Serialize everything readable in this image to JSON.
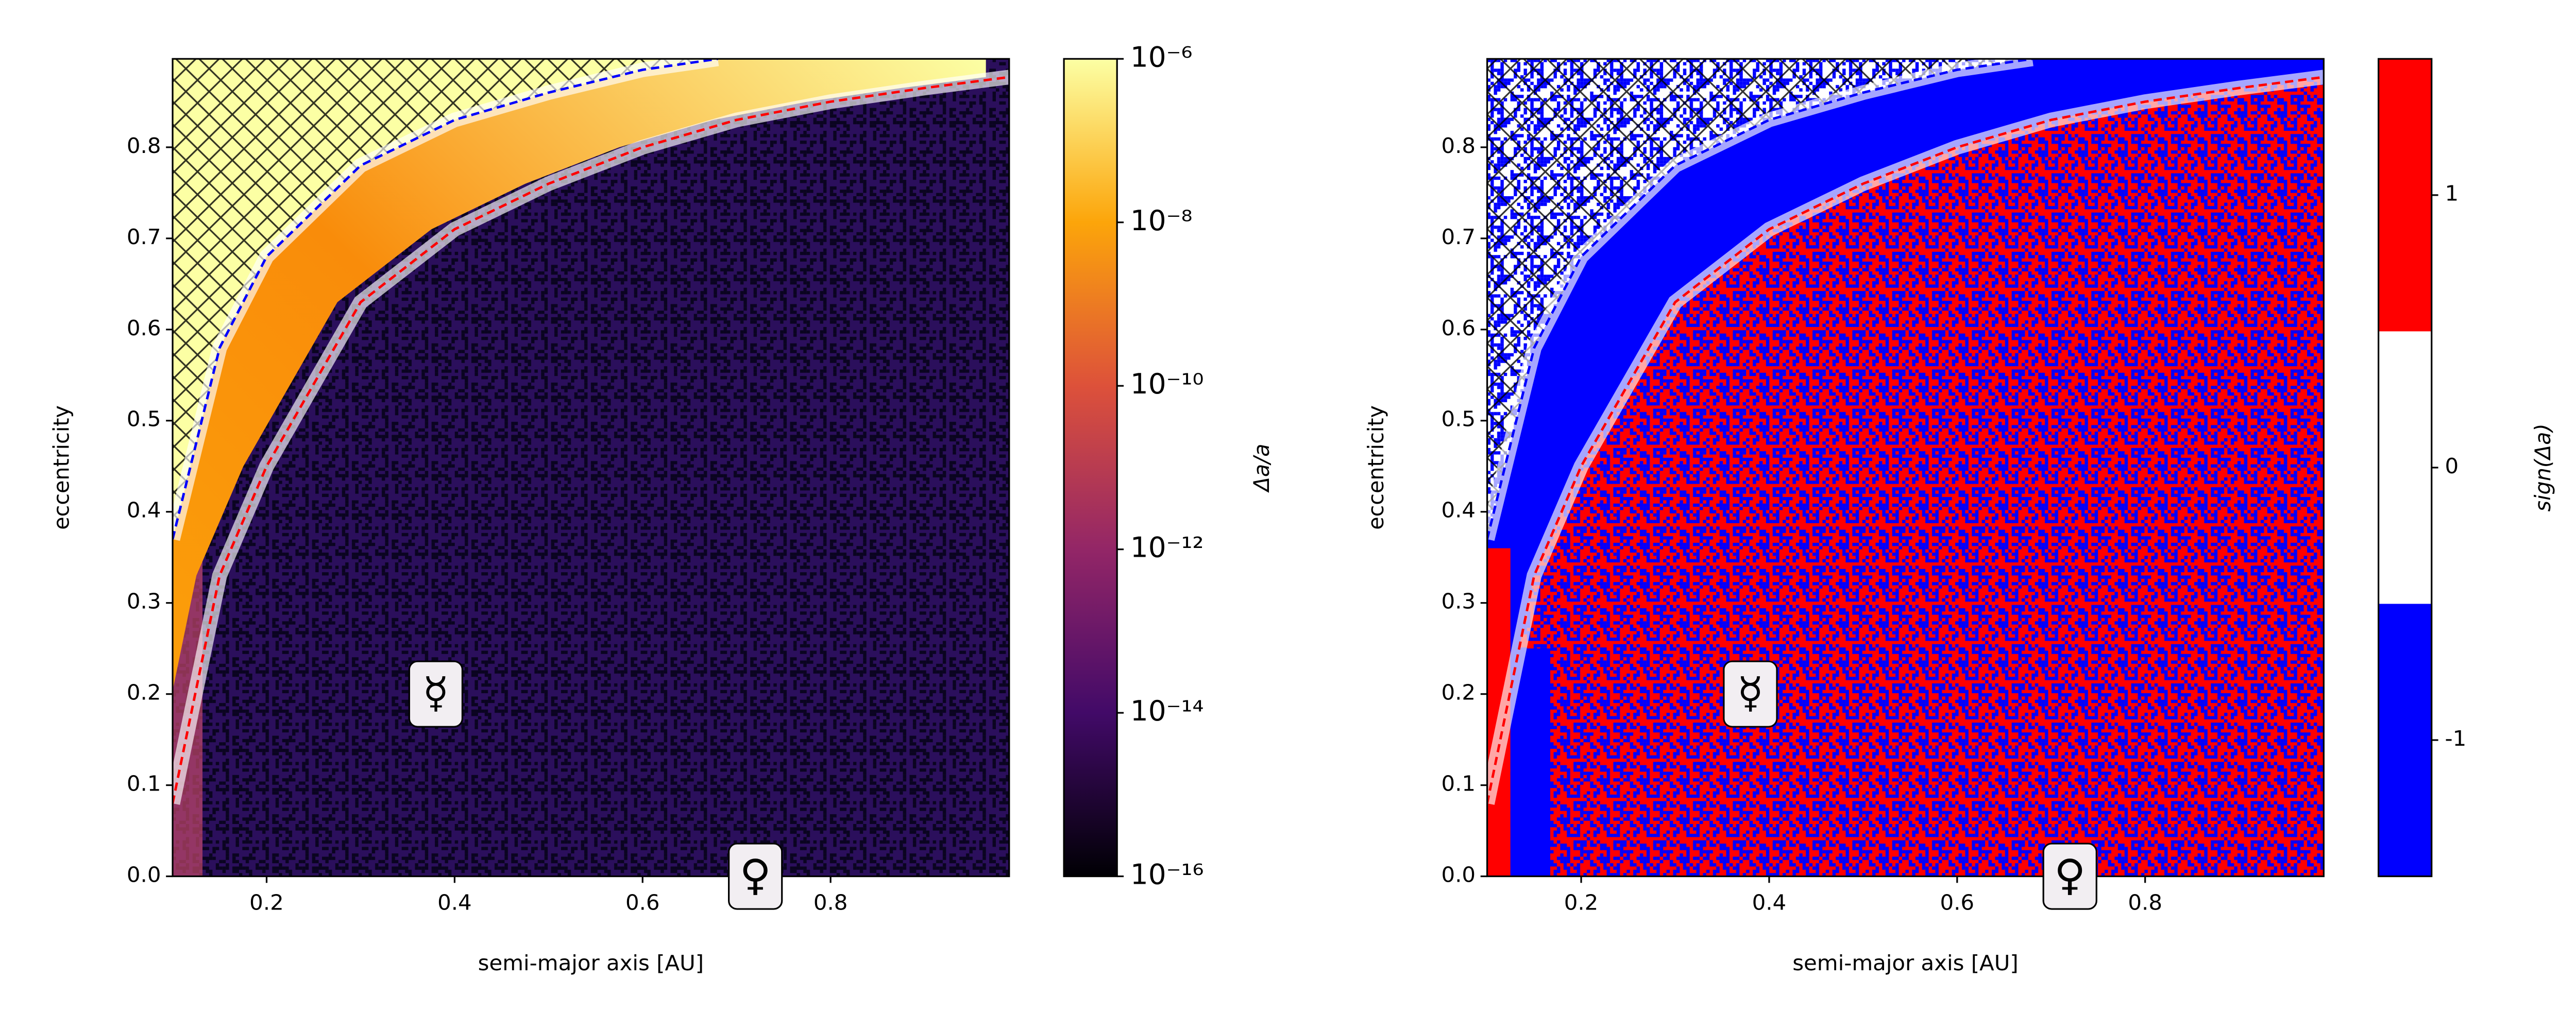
{
  "chart_data": [
    {
      "type": "heatmap",
      "xlabel": "semi-major axis [AU]",
      "ylabel": "eccentricity",
      "xlim": [
        0.1,
        0.99
      ],
      "ylim": [
        0,
        0.897
      ],
      "xticks": [
        0.2,
        0.4,
        0.6,
        0.8
      ],
      "yticks": [
        {
          "value": 0,
          "label": "0.0"
        },
        0.1,
        0.2,
        0.3,
        0.4,
        0.5,
        0.6,
        0.7,
        0.8
      ],
      "colorbar": {
        "label": "Δa/a",
        "scale": "log",
        "lim": [
          1e-16,
          1e-06
        ],
        "ticks": [
          {
            "value": 1e-16,
            "label": "10⁻¹⁶"
          },
          {
            "value": 1e-14,
            "label": "10⁻¹⁴"
          },
          {
            "value": 1e-12,
            "label": "10⁻¹²"
          },
          {
            "value": 1e-10,
            "label": "10⁻¹⁰"
          },
          {
            "value": 1e-08,
            "label": "10⁻⁸"
          },
          {
            "value": 1e-06,
            "label": "10⁻⁶"
          }
        ],
        "colors": [
          "#000004",
          "#420a68",
          "#932667",
          "#dd513a",
          "#fca50a",
          "#fcffa4"
        ]
      },
      "curves": [
        {
          "color": "#ff0000",
          "x": [
            0.1,
            0.15,
            0.2,
            0.3,
            0.4,
            0.5,
            0.6,
            0.7,
            0.8,
            0.9,
            0.99
          ],
          "y": [
            0.08,
            0.33,
            0.45,
            0.63,
            0.71,
            0.76,
            0.8,
            0.83,
            0.85,
            0.865,
            0.877
          ]
        },
        {
          "color": "#0000ff",
          "x": [
            0.1,
            0.15,
            0.2,
            0.3,
            0.4,
            0.5,
            0.6,
            0.68
          ],
          "y": [
            0.37,
            0.58,
            0.68,
            0.78,
            0.83,
            0.86,
            0.885,
            0.897
          ]
        }
      ],
      "annotations": [
        {
          "text": "☿",
          "x": 0.38,
          "y": 0.2
        },
        {
          "text": "♀",
          "x": 0.72,
          "y": 0
        }
      ]
    },
    {
      "type": "heatmap",
      "xlabel": "semi-major axis [AU]",
      "ylabel": "eccentricity",
      "xlim": [
        0.1,
        0.99
      ],
      "ylim": [
        0,
        0.897
      ],
      "xticks": [
        0.2,
        0.4,
        0.6,
        0.8
      ],
      "yticks": [
        {
          "value": 0,
          "label": "0.0"
        },
        0.1,
        0.2,
        0.3,
        0.4,
        0.5,
        0.6,
        0.7,
        0.8
      ],
      "colorbar": {
        "label": "sign(Δa)",
        "scale": "linear",
        "lim": [
          -1.5,
          1.5
        ],
        "ticks": [
          -1,
          0,
          1
        ],
        "colors": [
          "#0000ff",
          "#ffffff",
          "#ff0000"
        ]
      },
      "curves": [
        {
          "color": "#ff0000",
          "x": [
            0.1,
            0.15,
            0.2,
            0.3,
            0.4,
            0.5,
            0.6,
            0.7,
            0.8,
            0.9,
            0.99
          ],
          "y": [
            0.08,
            0.33,
            0.45,
            0.63,
            0.71,
            0.76,
            0.8,
            0.83,
            0.85,
            0.865,
            0.877
          ]
        },
        {
          "color": "#0000ff",
          "x": [
            0.1,
            0.15,
            0.2,
            0.3,
            0.4,
            0.5,
            0.6,
            0.68
          ],
          "y": [
            0.37,
            0.58,
            0.68,
            0.78,
            0.83,
            0.86,
            0.885,
            0.897
          ]
        }
      ],
      "annotations": [
        {
          "text": "☿",
          "x": 0.38,
          "y": 0.2
        },
        {
          "text": "♀",
          "x": 0.72,
          "y": 0
        }
      ]
    }
  ]
}
